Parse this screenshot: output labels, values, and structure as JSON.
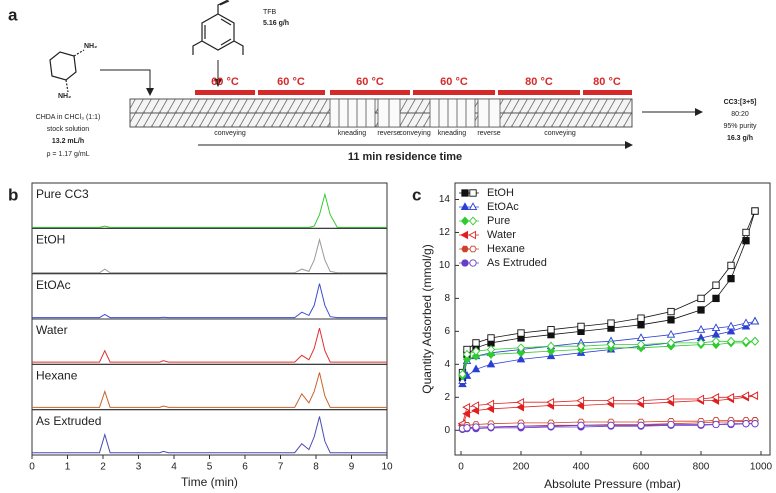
{
  "scheme": {
    "label": "a",
    "tfb": {
      "name": "TFB",
      "rate": "5.16 g/h"
    },
    "chda": {
      "groups": [
        "NH₂",
        "NH₂"
      ],
      "lines": [
        "CHDA in CHCl₃ (1:1)",
        "stock solution",
        "13.2 mL/h",
        "ρ = 1.17 g/mL"
      ]
    },
    "temperatures": [
      "60 °C",
      "60 °C",
      "60 °C",
      "60 °C",
      "80 °C",
      "80 °C"
    ],
    "zones": [
      "conveying",
      "kneading",
      "reverse",
      "conveying",
      "kneading",
      "reverse",
      "conveying"
    ],
    "residence": "11 min residence time",
    "product": [
      "CC3:[3+5]",
      "80:20",
      "95% purity",
      "16.3 g/h"
    ]
  },
  "chart_data": [
    {
      "type": "line",
      "panel": "b",
      "x_label": "Time (min)",
      "xlim": [
        0,
        10
      ],
      "xticks": [
        0,
        1,
        2,
        3,
        4,
        5,
        6,
        7,
        8,
        9,
        10
      ],
      "x": [
        0,
        1.9,
        2.05,
        2.2,
        3.6,
        3.7,
        3.85,
        7.4,
        7.6,
        7.8,
        7.95,
        8.1,
        8.25,
        8.4,
        8.6,
        10
      ],
      "series": [
        {
          "name": "Pure CC3",
          "color": "#33cc33",
          "values": [
            0.02,
            0.02,
            0.05,
            0.02,
            0.02,
            0.02,
            0.02,
            0.02,
            0.02,
            0.02,
            0.05,
            0.3,
            0.75,
            0.3,
            0.02,
            0.02
          ]
        },
        {
          "name": "EtOH",
          "color": "#999999",
          "values": [
            0.02,
            0.02,
            0.1,
            0.02,
            0.02,
            0.02,
            0.02,
            0.02,
            0.1,
            0.05,
            0.3,
            0.75,
            0.3,
            0.05,
            0.02,
            0.02
          ]
        },
        {
          "name": "EtOAc",
          "color": "#3b4fd1",
          "values": [
            0.03,
            0.03,
            0.1,
            0.03,
            0.03,
            0.04,
            0.03,
            0.03,
            0.15,
            0.08,
            0.3,
            0.78,
            0.3,
            0.05,
            0.03,
            0.03
          ]
        },
        {
          "name": "Water",
          "color": "#e03030",
          "values": [
            0.05,
            0.05,
            0.3,
            0.05,
            0.05,
            0.08,
            0.05,
            0.05,
            0.2,
            0.1,
            0.35,
            0.8,
            0.3,
            0.05,
            0.05,
            0.05
          ]
        },
        {
          "name": "Hexane",
          "color": "#c8642a",
          "values": [
            0.05,
            0.05,
            0.4,
            0.05,
            0.05,
            0.08,
            0.05,
            0.05,
            0.35,
            0.15,
            0.4,
            0.82,
            0.3,
            0.05,
            0.05,
            0.05
          ]
        },
        {
          "name": "As Extruded",
          "color": "#4a4ab8",
          "values": [
            0.05,
            0.05,
            0.45,
            0.05,
            0.05,
            0.08,
            0.05,
            0.05,
            0.25,
            0.12,
            0.4,
            0.85,
            0.3,
            0.05,
            0.05,
            0.05
          ]
        }
      ]
    },
    {
      "type": "scatter",
      "panel": "c",
      "x_label": "Absolute Pressure (mbar)",
      "y_label": "Quantity Adsorbed (mmol/g)",
      "xlim": [
        -20,
        1030
      ],
      "xticks": [
        0,
        200,
        400,
        600,
        800,
        1000
      ],
      "ylim": [
        -1.5,
        15
      ],
      "yticks": [
        0,
        2,
        4,
        6,
        8,
        10,
        12,
        14
      ],
      "legend": "upper left",
      "x": [
        5,
        20,
        50,
        100,
        200,
        300,
        400,
        500,
        600,
        700,
        800,
        850,
        900,
        950,
        980
      ],
      "series": [
        {
          "name": "EtOH",
          "color": "#111111",
          "marker": "square",
          "values": [
            3.2,
            4.6,
            5.0,
            5.3,
            5.6,
            5.8,
            6.0,
            6.2,
            6.4,
            6.7,
            7.3,
            8.0,
            9.2,
            11.5,
            13.3
          ],
          "desorption": [
            3.5,
            4.9,
            5.3,
            5.6,
            5.9,
            6.1,
            6.3,
            6.5,
            6.8,
            7.2,
            8.0,
            8.8,
            10.0,
            12.0,
            13.3
          ]
        },
        {
          "name": "EtOAc",
          "color": "#2b3fd6",
          "marker": "triangle",
          "values": [
            2.8,
            3.3,
            3.7,
            4.0,
            4.3,
            4.5,
            4.7,
            4.9,
            5.1,
            5.3,
            5.6,
            5.8,
            6.0,
            6.3,
            6.6
          ],
          "desorption": [
            3.0,
            4.2,
            4.5,
            4.7,
            4.9,
            5.1,
            5.3,
            5.4,
            5.6,
            5.8,
            6.1,
            6.2,
            6.3,
            6.5,
            6.6
          ]
        },
        {
          "name": "Pure",
          "color": "#2ecc2e",
          "marker": "diamond",
          "values": [
            3.3,
            4.3,
            4.5,
            4.6,
            4.7,
            4.8,
            4.9,
            5.0,
            5.0,
            5.1,
            5.2,
            5.2,
            5.3,
            5.3,
            5.4
          ],
          "desorption": [
            3.4,
            4.6,
            4.8,
            4.9,
            5.0,
            5.1,
            5.1,
            5.2,
            5.2,
            5.3,
            5.3,
            5.4,
            5.4,
            5.4,
            5.4
          ]
        },
        {
          "name": "Water",
          "color": "#e02020",
          "marker": "triangle-left",
          "values": [
            0.3,
            1.0,
            1.2,
            1.3,
            1.4,
            1.5,
            1.5,
            1.6,
            1.6,
            1.7,
            1.8,
            1.8,
            1.9,
            2.0,
            2.1
          ],
          "desorption": [
            0.4,
            1.4,
            1.5,
            1.6,
            1.7,
            1.7,
            1.8,
            1.8,
            1.8,
            1.9,
            1.9,
            2.0,
            2.0,
            2.1,
            2.1
          ]
        },
        {
          "name": "Hexane",
          "color": "#d0402a",
          "marker": "hexagon",
          "values": [
            0.1,
            0.15,
            0.2,
            0.2,
            0.25,
            0.3,
            0.3,
            0.35,
            0.35,
            0.4,
            0.45,
            0.5,
            0.5,
            0.55,
            0.6
          ],
          "desorption": [
            0.2,
            0.3,
            0.35,
            0.4,
            0.45,
            0.45,
            0.5,
            0.5,
            0.5,
            0.55,
            0.55,
            0.6,
            0.6,
            0.6,
            0.6
          ]
        },
        {
          "name": "As Extruded",
          "color": "#6a3dc8",
          "marker": "circle",
          "values": [
            0.05,
            0.1,
            0.1,
            0.15,
            0.15,
            0.2,
            0.2,
            0.25,
            0.25,
            0.3,
            0.3,
            0.35,
            0.35,
            0.4,
            0.4
          ],
          "desorption": [
            0.1,
            0.15,
            0.2,
            0.2,
            0.25,
            0.25,
            0.3,
            0.3,
            0.3,
            0.35,
            0.35,
            0.35,
            0.4,
            0.4,
            0.4
          ]
        }
      ]
    }
  ]
}
